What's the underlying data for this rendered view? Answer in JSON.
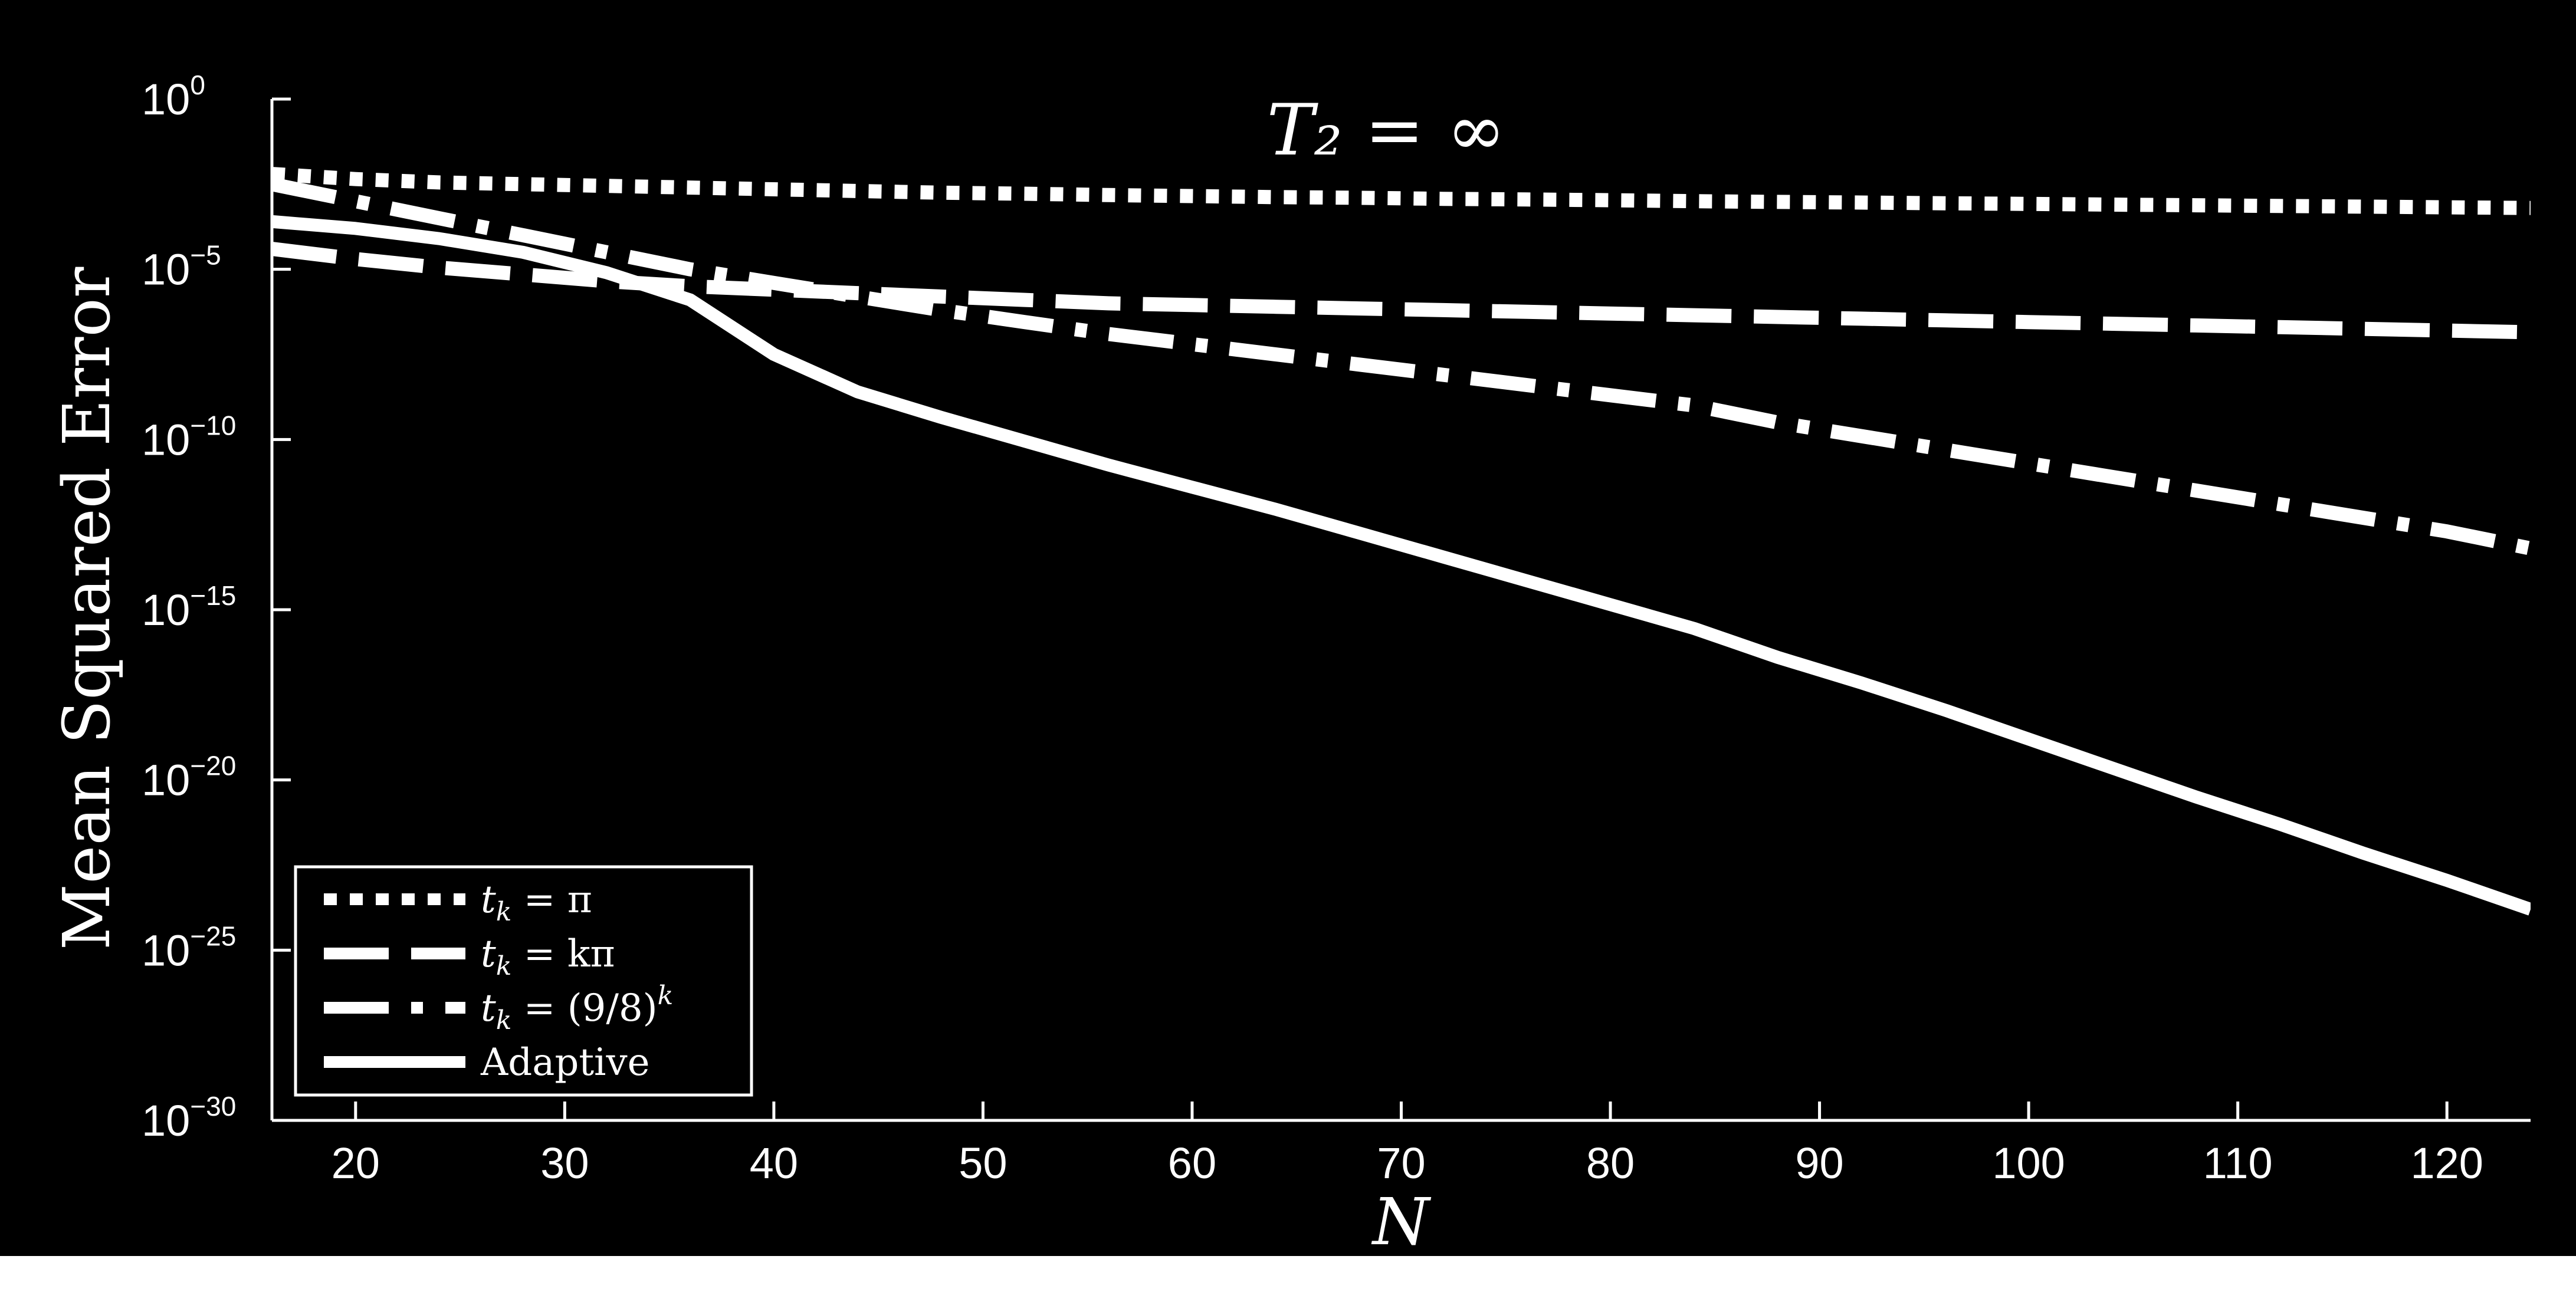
{
  "chart_data": {
    "type": "line",
    "title": "T₂ = ∞",
    "xlabel": "N",
    "ylabel": "Mean Squared Error",
    "xlim": [
      16,
      124
    ],
    "ylim_exp": [
      -30,
      0
    ],
    "yscale": "log",
    "x_ticks": [
      20,
      30,
      40,
      50,
      60,
      70,
      80,
      90,
      100,
      110,
      120
    ],
    "y_ticks": [
      {
        "base": "10",
        "exp": "0",
        "value": 0
      },
      {
        "base": "10",
        "exp": "−5",
        "value": -5
      },
      {
        "base": "10",
        "exp": "−10",
        "value": -10
      },
      {
        "base": "10",
        "exp": "−15",
        "value": -15
      },
      {
        "base": "10",
        "exp": "−20",
        "value": -20
      },
      {
        "base": "10",
        "exp": "−25",
        "value": -25
      },
      {
        "base": "10",
        "exp": "−30",
        "value": -30
      }
    ],
    "grid": false,
    "legend_position": "bottom-left",
    "series": [
      {
        "name": "t_k = π",
        "label_main": "t",
        "label_sub": "k",
        "label_rest": " = π",
        "style": "dotted",
        "x": [
          16,
          20,
          24,
          28,
          32,
          36,
          40,
          44,
          48,
          52,
          56,
          60,
          64,
          68,
          72,
          76,
          80,
          84,
          88,
          92,
          96,
          100,
          104,
          108,
          112,
          116,
          120,
          124
        ],
        "log10_y": [
          -2.2,
          -2.35,
          -2.45,
          -2.5,
          -2.55,
          -2.6,
          -2.65,
          -2.7,
          -2.75,
          -2.78,
          -2.82,
          -2.85,
          -2.88,
          -2.9,
          -2.93,
          -2.95,
          -2.97,
          -3.0,
          -3.02,
          -3.04,
          -3.06,
          -3.08,
          -3.1,
          -3.12,
          -3.14,
          -3.16,
          -3.18,
          -3.2
        ]
      },
      {
        "name": "t_k = kπ",
        "label_main": "t",
        "label_sub": "k",
        "label_rest": " = kπ",
        "style": "dashed",
        "x": [
          16,
          20,
          24,
          28,
          32,
          36,
          40,
          44,
          48,
          52,
          56,
          60,
          64,
          68,
          72,
          76,
          80,
          84,
          88,
          92,
          96,
          100,
          104,
          108,
          112,
          116,
          120,
          124
        ],
        "log10_y": [
          -4.4,
          -4.7,
          -4.95,
          -5.15,
          -5.35,
          -5.5,
          -5.6,
          -5.7,
          -5.8,
          -5.9,
          -6.0,
          -6.05,
          -6.1,
          -6.15,
          -6.2,
          -6.25,
          -6.3,
          -6.35,
          -6.4,
          -6.45,
          -6.5,
          -6.55,
          -6.6,
          -6.65,
          -6.7,
          -6.75,
          -6.8,
          -6.85
        ]
      },
      {
        "name": "t_k = (9/8)^k",
        "label_main": "t",
        "label_sub": "k",
        "label_rest": " = (9/8)",
        "label_sup": "k",
        "style": "dashdot",
        "x": [
          16,
          20,
          24,
          28,
          32,
          36,
          40,
          44,
          48,
          52,
          56,
          60,
          64,
          68,
          72,
          76,
          80,
          84,
          88,
          92,
          96,
          100,
          104,
          108,
          112,
          116,
          120,
          124
        ],
        "log10_y": [
          -2.5,
          -3.0,
          -3.5,
          -4.0,
          -4.5,
          -5.0,
          -5.4,
          -5.8,
          -6.2,
          -6.55,
          -6.9,
          -7.2,
          -7.5,
          -7.8,
          -8.1,
          -8.4,
          -8.7,
          -9.0,
          -9.5,
          -9.9,
          -10.3,
          -10.7,
          -11.1,
          -11.5,
          -11.9,
          -12.3,
          -12.7,
          -13.2
        ]
      },
      {
        "name": "Adaptive",
        "label_main": "Adaptive",
        "label_sub": "",
        "label_rest": "",
        "style": "solid",
        "x": [
          16,
          20,
          24,
          28,
          32,
          36,
          40,
          44,
          48,
          52,
          56,
          60,
          64,
          68,
          72,
          76,
          80,
          84,
          88,
          92,
          96,
          100,
          104,
          108,
          112,
          116,
          120,
          124
        ],
        "log10_y": [
          -3.6,
          -3.8,
          -4.1,
          -4.5,
          -5.1,
          -5.9,
          -7.5,
          -8.6,
          -9.35,
          -10.05,
          -10.75,
          -11.4,
          -12.05,
          -12.75,
          -13.45,
          -14.15,
          -14.85,
          -15.55,
          -16.4,
          -17.15,
          -17.95,
          -18.8,
          -19.65,
          -20.5,
          -21.3,
          -22.15,
          -22.95,
          -23.8
        ]
      }
    ]
  }
}
